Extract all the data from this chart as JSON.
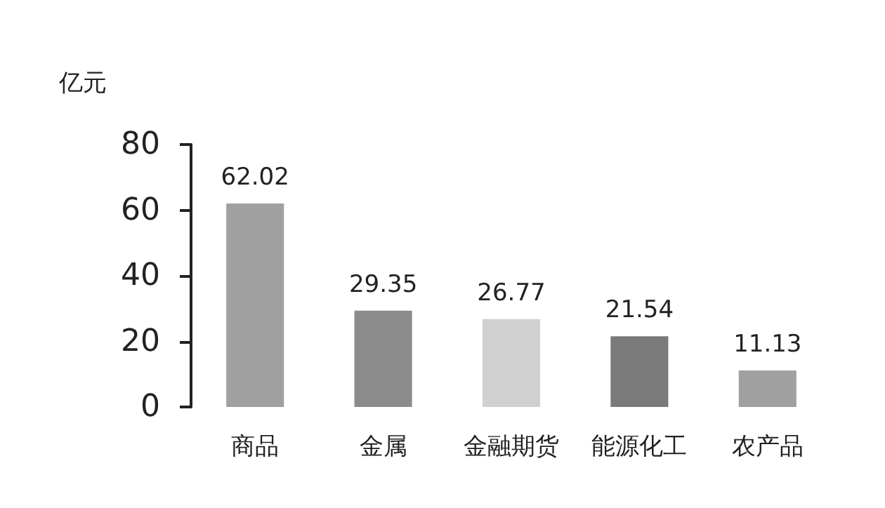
{
  "chart_data": {
    "type": "bar",
    "ylabel": "亿元",
    "categories": [
      "商品",
      "金属",
      "金融期货",
      "能源化工",
      "农产品"
    ],
    "values": [
      62.02,
      29.35,
      26.77,
      21.54,
      11.13
    ],
    "colors": [
      "#a0a0a0",
      "#8c8c8c",
      "#d0d0d0",
      "#7a7a7a",
      "#a0a0a0"
    ],
    "ylim": [
      0,
      80
    ],
    "yticks": [
      0,
      20,
      40,
      60,
      80
    ],
    "grid": false,
    "data_labels": true
  }
}
